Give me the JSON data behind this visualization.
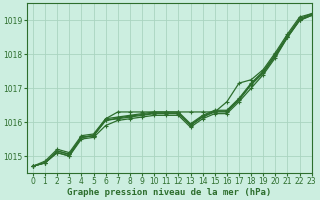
{
  "title": "Graphe pression niveau de la mer (hPa)",
  "bg_color": "#cceee0",
  "grid_color": "#aad4c0",
  "line_color": "#2d6e2d",
  "xlim": [
    -0.5,
    23
  ],
  "ylim": [
    1014.5,
    1019.5
  ],
  "yticks": [
    1015,
    1016,
    1017,
    1018,
    1019
  ],
  "xticks": [
    0,
    1,
    2,
    3,
    4,
    5,
    6,
    7,
    8,
    9,
    10,
    11,
    12,
    13,
    14,
    15,
    16,
    17,
    18,
    19,
    20,
    21,
    22,
    23
  ],
  "series": [
    [
      1014.7,
      1014.8,
      1015.1,
      1015.0,
      1015.55,
      1015.6,
      1016.1,
      1016.3,
      1016.3,
      1016.3,
      1016.3,
      1016.3,
      1016.3,
      1016.3,
      1016.3,
      1016.3,
      1016.6,
      1017.15,
      1017.25,
      1017.55,
      1018.05,
      1018.6,
      1019.1,
      1019.2
    ],
    [
      1014.7,
      1014.8,
      1015.1,
      1015.0,
      1015.5,
      1015.55,
      1015.9,
      1016.05,
      1016.1,
      1016.15,
      1016.2,
      1016.2,
      1016.2,
      1015.85,
      1016.1,
      1016.25,
      1016.25,
      1016.6,
      1017.0,
      1017.4,
      1017.9,
      1018.5,
      1019.0,
      1019.15
    ],
    [
      1014.7,
      1014.8,
      1015.15,
      1015.05,
      1015.55,
      1015.6,
      1016.05,
      1016.1,
      1016.15,
      1016.2,
      1016.25,
      1016.25,
      1016.25,
      1015.9,
      1016.15,
      1016.3,
      1016.3,
      1016.65,
      1017.1,
      1017.45,
      1017.95,
      1018.5,
      1019.0,
      1019.15
    ],
    [
      1014.7,
      1014.85,
      1015.2,
      1015.1,
      1015.6,
      1015.65,
      1016.1,
      1016.15,
      1016.2,
      1016.25,
      1016.3,
      1016.3,
      1016.3,
      1015.95,
      1016.2,
      1016.35,
      1016.35,
      1016.7,
      1017.15,
      1017.5,
      1018.0,
      1018.55,
      1019.05,
      1019.2
    ],
    [
      1014.7,
      1014.8,
      1015.15,
      1015.05,
      1015.55,
      1015.6,
      1016.05,
      1016.12,
      1016.18,
      1016.22,
      1016.27,
      1016.27,
      1016.27,
      1015.92,
      1016.17,
      1016.32,
      1016.32,
      1016.67,
      1017.12,
      1017.47,
      1017.97,
      1018.52,
      1019.02,
      1019.17
    ]
  ],
  "title_fontsize": 6.5,
  "tick_fontsize": 5.5,
  "linewidth": 0.9,
  "markersize": 2.2
}
